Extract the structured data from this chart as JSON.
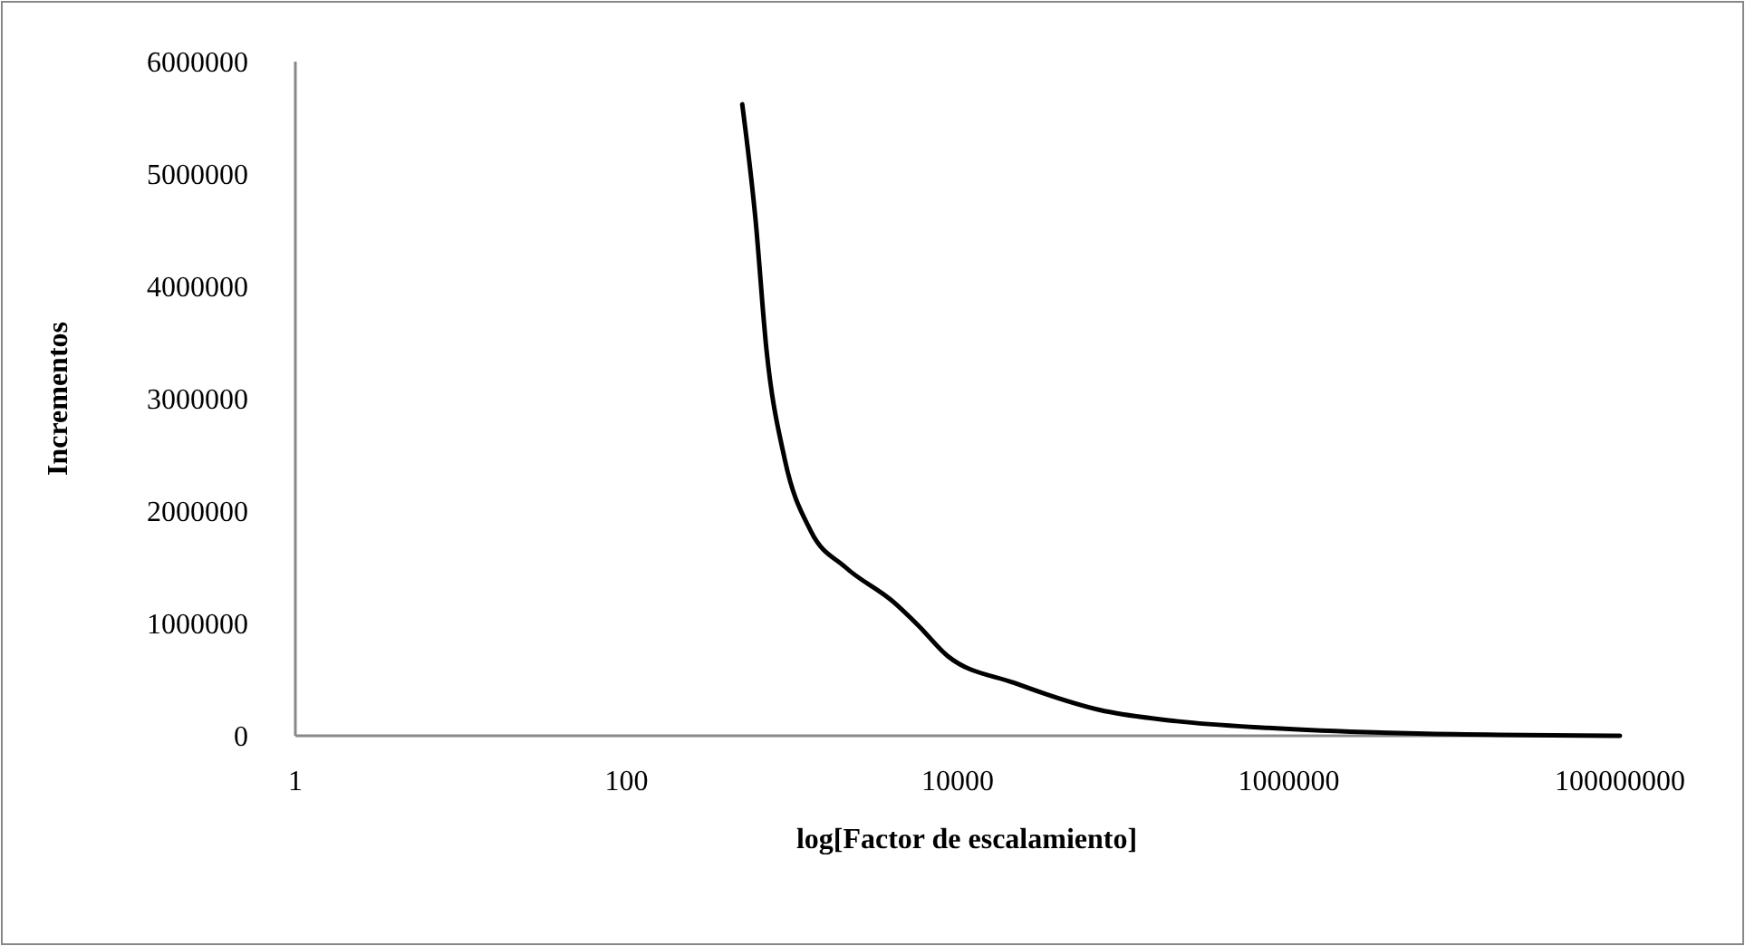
{
  "chart_data": {
    "type": "line",
    "xlabel": "log[Factor de escalamiento]",
    "ylabel": "Incrementos",
    "log": "x",
    "xlim": [
      1,
      100000000
    ],
    "xticks": [
      1,
      100,
      10000,
      1000000,
      100000000
    ],
    "ylim": [
      0,
      6000000
    ],
    "yticks": [
      0,
      1000000,
      2000000,
      3000000,
      4000000,
      5000000,
      6000000
    ],
    "marker": "none",
    "line_style": "solid",
    "series": [
      {
        "color": "#000000",
        "x": [
          500,
          600,
          700,
          900,
          1300,
          2100,
          4100,
          5800,
          8700,
          22000,
          72000,
          210000,
          750000,
          6000000,
          100000000
        ],
        "values": [
          5620000,
          4610000,
          3440000,
          2470000,
          1820000,
          1500000,
          1190000,
          980000,
          710000,
          470000,
          230000,
          130000,
          70000,
          20000,
          0
        ]
      }
    ]
  }
}
